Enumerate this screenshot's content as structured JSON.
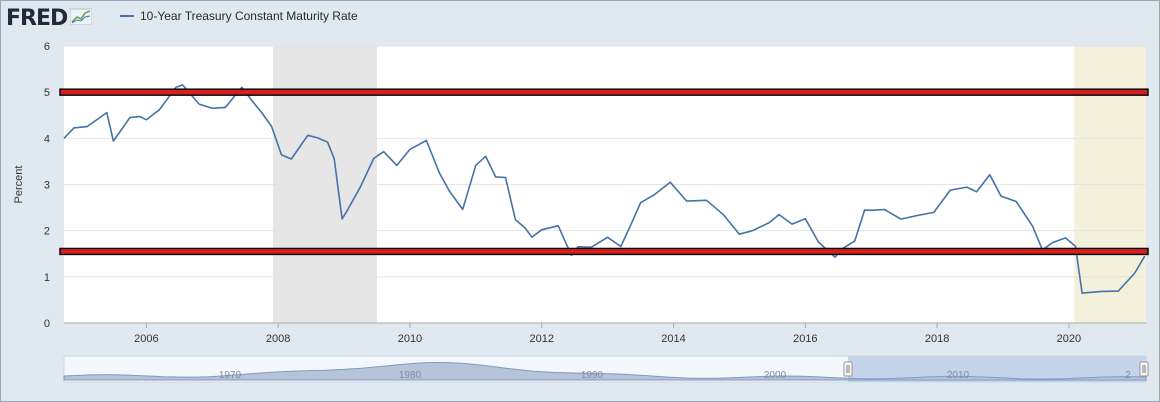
{
  "header": {
    "logo_text": "FRED",
    "logo_icon": "chart-line-icon",
    "legend_label": "10-Year Treasury Constant Maturity Rate",
    "series_color": "#4572a7"
  },
  "navigator": {
    "labels": [
      "1970",
      "1980",
      "1990",
      "2000",
      "2010",
      "2"
    ]
  },
  "chart_data": {
    "type": "line",
    "title": "",
    "xlabel": "",
    "ylabel": "Percent",
    "xlim": [
      2004.75,
      2021.17
    ],
    "ylim": [
      0,
      6
    ],
    "x_ticks": [
      "2006",
      "2008",
      "2010",
      "2012",
      "2014",
      "2016",
      "2018",
      "2020"
    ],
    "y_ticks": [
      "0",
      "1",
      "2",
      "3",
      "4",
      "5",
      "6"
    ],
    "grid": "horizontal",
    "legend_position": "top-left",
    "recessions": [
      {
        "start": 2007.92,
        "end": 2009.5,
        "color": "#e6e6e6"
      },
      {
        "start": 2020.08,
        "end": 2021.17,
        "color": "#f3f1dc"
      }
    ],
    "annotations": [
      {
        "type": "hline",
        "y": 5.0,
        "color": "#d62020"
      },
      {
        "type": "hline",
        "y": 1.55,
        "color": "#d62020"
      }
    ],
    "series": [
      {
        "name": "10-Year Treasury Constant Maturity Rate",
        "color": "#4572a7",
        "x": [
          2004.75,
          2004.9,
          2005.1,
          2005.4,
          2005.5,
          2005.75,
          2005.9,
          2006.0,
          2006.2,
          2006.45,
          2006.55,
          2006.8,
          2007.0,
          2007.2,
          2007.45,
          2007.6,
          2007.75,
          2007.9,
          2008.05,
          2008.2,
          2008.45,
          2008.6,
          2008.75,
          2008.85,
          2008.97,
          2009.05,
          2009.25,
          2009.45,
          2009.6,
          2009.8,
          2010.0,
          2010.25,
          2010.45,
          2010.6,
          2010.8,
          2011.0,
          2011.15,
          2011.3,
          2011.45,
          2011.6,
          2011.75,
          2011.85,
          2012.0,
          2012.25,
          2012.45,
          2012.55,
          2012.75,
          2013.0,
          2013.2,
          2013.35,
          2013.5,
          2013.7,
          2013.95,
          2014.2,
          2014.5,
          2014.75,
          2015.0,
          2015.2,
          2015.45,
          2015.6,
          2015.8,
          2016.0,
          2016.2,
          2016.45,
          2016.55,
          2016.75,
          2016.9,
          2017.0,
          2017.2,
          2017.45,
          2017.7,
          2017.95,
          2018.2,
          2018.45,
          2018.6,
          2018.8,
          2018.97,
          2019.2,
          2019.45,
          2019.6,
          2019.75,
          2019.95,
          2020.1,
          2020.2,
          2020.5,
          2020.75,
          2021.0,
          2021.15
        ],
        "values": [
          4.0,
          4.2,
          4.3,
          4.5,
          4.0,
          4.4,
          4.5,
          4.4,
          4.6,
          5.15,
          5.1,
          4.8,
          4.6,
          4.7,
          5.1,
          4.8,
          4.6,
          4.2,
          3.7,
          3.5,
          4.1,
          4.0,
          3.9,
          3.6,
          2.2,
          2.5,
          2.9,
          3.6,
          3.7,
          3.4,
          3.8,
          3.9,
          3.3,
          2.8,
          2.5,
          3.4,
          3.6,
          3.2,
          3.1,
          2.3,
          2.0,
          1.9,
          2.0,
          2.1,
          1.5,
          1.6,
          1.7,
          1.8,
          1.7,
          2.1,
          2.6,
          2.8,
          3.0,
          2.7,
          2.6,
          2.4,
          1.9,
          2.0,
          2.2,
          2.3,
          2.2,
          2.2,
          1.8,
          1.4,
          1.6,
          1.8,
          2.4,
          2.5,
          2.4,
          2.3,
          2.3,
          2.4,
          2.9,
          2.9,
          2.9,
          3.15,
          2.8,
          2.6,
          2.1,
          1.6,
          1.7,
          1.9,
          1.6,
          0.7,
          0.65,
          0.7,
          1.1,
          1.45
        ]
      }
    ]
  }
}
